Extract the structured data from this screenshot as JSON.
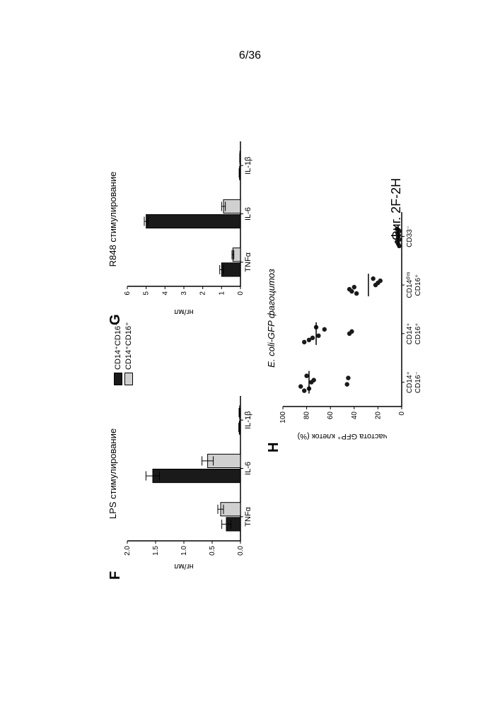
{
  "page_number": "6/36",
  "figure_caption": "Фиг. 2F-2H",
  "legend": {
    "item1": "CD14⁺CD16⁻",
    "item2": "CD14⁺CD16⁺",
    "color1": "#1a1a1a",
    "color2": "#d0d0d0"
  },
  "panelF": {
    "label": "F",
    "title": "LPS стимулирование",
    "ylabel": "нг/мл",
    "ylim": [
      0,
      2.0
    ],
    "yticks": [
      0.0,
      0.5,
      1.0,
      1.5,
      2.0
    ],
    "categories": [
      "TNFα",
      "IL-6",
      "IL-1β"
    ],
    "series1": [
      0.25,
      1.55,
      0.02
    ],
    "series1_err": [
      0.08,
      0.12,
      0.01
    ],
    "series2": [
      0.35,
      0.58,
      0.015
    ],
    "series2_err": [
      0.05,
      0.1,
      0.01
    ],
    "bar_color1": "#1a1a1a",
    "bar_color2": "#d0d0d0",
    "axis_color": "#000000"
  },
  "panelG": {
    "label": "G",
    "title": "R848 стимулирование",
    "ylabel": "нг/мл",
    "ylim": [
      0,
      6
    ],
    "yticks": [
      0,
      1,
      2,
      3,
      4,
      5,
      6
    ],
    "categories": [
      "TNFα",
      "IL-6",
      "IL-1β"
    ],
    "series1": [
      1.0,
      5.0,
      0.05
    ],
    "series1_err": [
      0.1,
      0.1,
      0.02
    ],
    "series2": [
      0.4,
      0.9,
      0.03
    ],
    "series2_err": [
      0.05,
      0.1,
      0.01
    ],
    "bar_color1": "#1a1a1a",
    "bar_color2": "#d0d0d0",
    "axis_color": "#000000"
  },
  "panelH": {
    "label": "H",
    "title": "E. coli-GFP фагоцитоз",
    "ylabel": "частота GFP⁺ клеток (%)",
    "ylim": [
      0,
      100
    ],
    "yticks": [
      0,
      20,
      40,
      60,
      80,
      100
    ],
    "categories": [
      "CD14⁺\nCD16⁻",
      "CD14⁺\nCD16⁺",
      "CD14ᵈⁱᵐ\nCD16⁺",
      "CD33⁻"
    ],
    "cat_labels_line1": [
      "CD14⁺",
      "CD14⁺",
      "CD14ᵈⁱᵐ",
      "CD33⁻"
    ],
    "cat_labels_line2": [
      "CD16⁻",
      "CD16⁺",
      "CD16⁺",
      ""
    ],
    "points": {
      "0": [
        82,
        78,
        85,
        46,
        76,
        74,
        45,
        80
      ],
      "1": [
        82,
        78,
        75,
        70,
        44,
        42,
        65,
        72
      ],
      "2": [
        38,
        42,
        44,
        40,
        22,
        20,
        18,
        24
      ],
      "3": [
        2,
        3,
        4,
        2,
        3,
        2.5,
        3.5,
        2,
        4
      ]
    },
    "medians": [
      78,
      72,
      28,
      3
    ],
    "marker_color": "#1a1a1a",
    "axis_color": "#000000"
  }
}
